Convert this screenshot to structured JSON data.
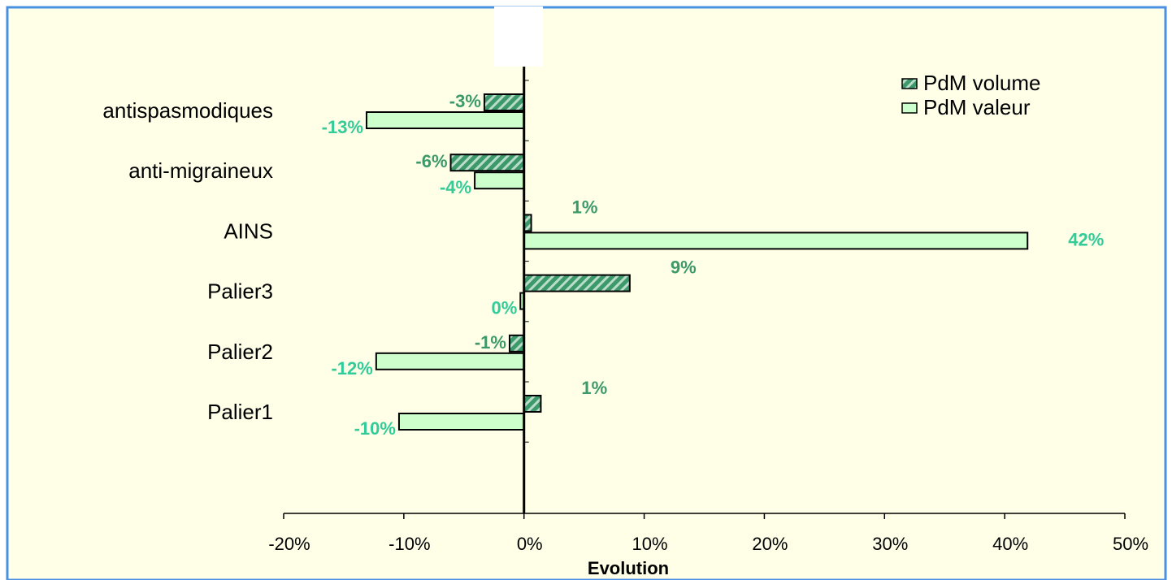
{
  "chart_data": {
    "type": "bar",
    "orientation": "horizontal",
    "categories": [
      "antispasmodiques",
      "anti-migraineux",
      "AINS",
      "Palier3",
      "Palier2",
      "Palier1"
    ],
    "series": [
      {
        "name": "PdM volume",
        "values": [
          -3.3,
          -6.1,
          0.6,
          8.8,
          -1.2,
          1.4
        ],
        "labels": [
          "-3%",
          "-6%",
          "1%",
          "9%",
          "-1%",
          "1%"
        ]
      },
      {
        "name": "PdM valeur",
        "values": [
          -13.1,
          -4.1,
          41.9,
          -0.3,
          -12.3,
          -10.4
        ],
        "labels": [
          "-13%",
          "-4%",
          "42%",
          "0%",
          "-12%",
          "-10%"
        ]
      }
    ],
    "xlim": [
      -20,
      50
    ],
    "xticks": [
      "-20%",
      "-10%",
      "0%",
      "10%",
      "20%",
      "30%",
      "40%",
      "50%"
    ],
    "xlabel": "Evolution",
    "legend_position": "top-right",
    "grid": false
  },
  "colors": {
    "background": "#FFFFE8",
    "frame": "#4A90E2",
    "volume_fill": "#3C9A6A",
    "valeur_fill": "#CCFFCC",
    "volume_label": "#3C9A6A",
    "valeur_label": "#33CC99"
  }
}
